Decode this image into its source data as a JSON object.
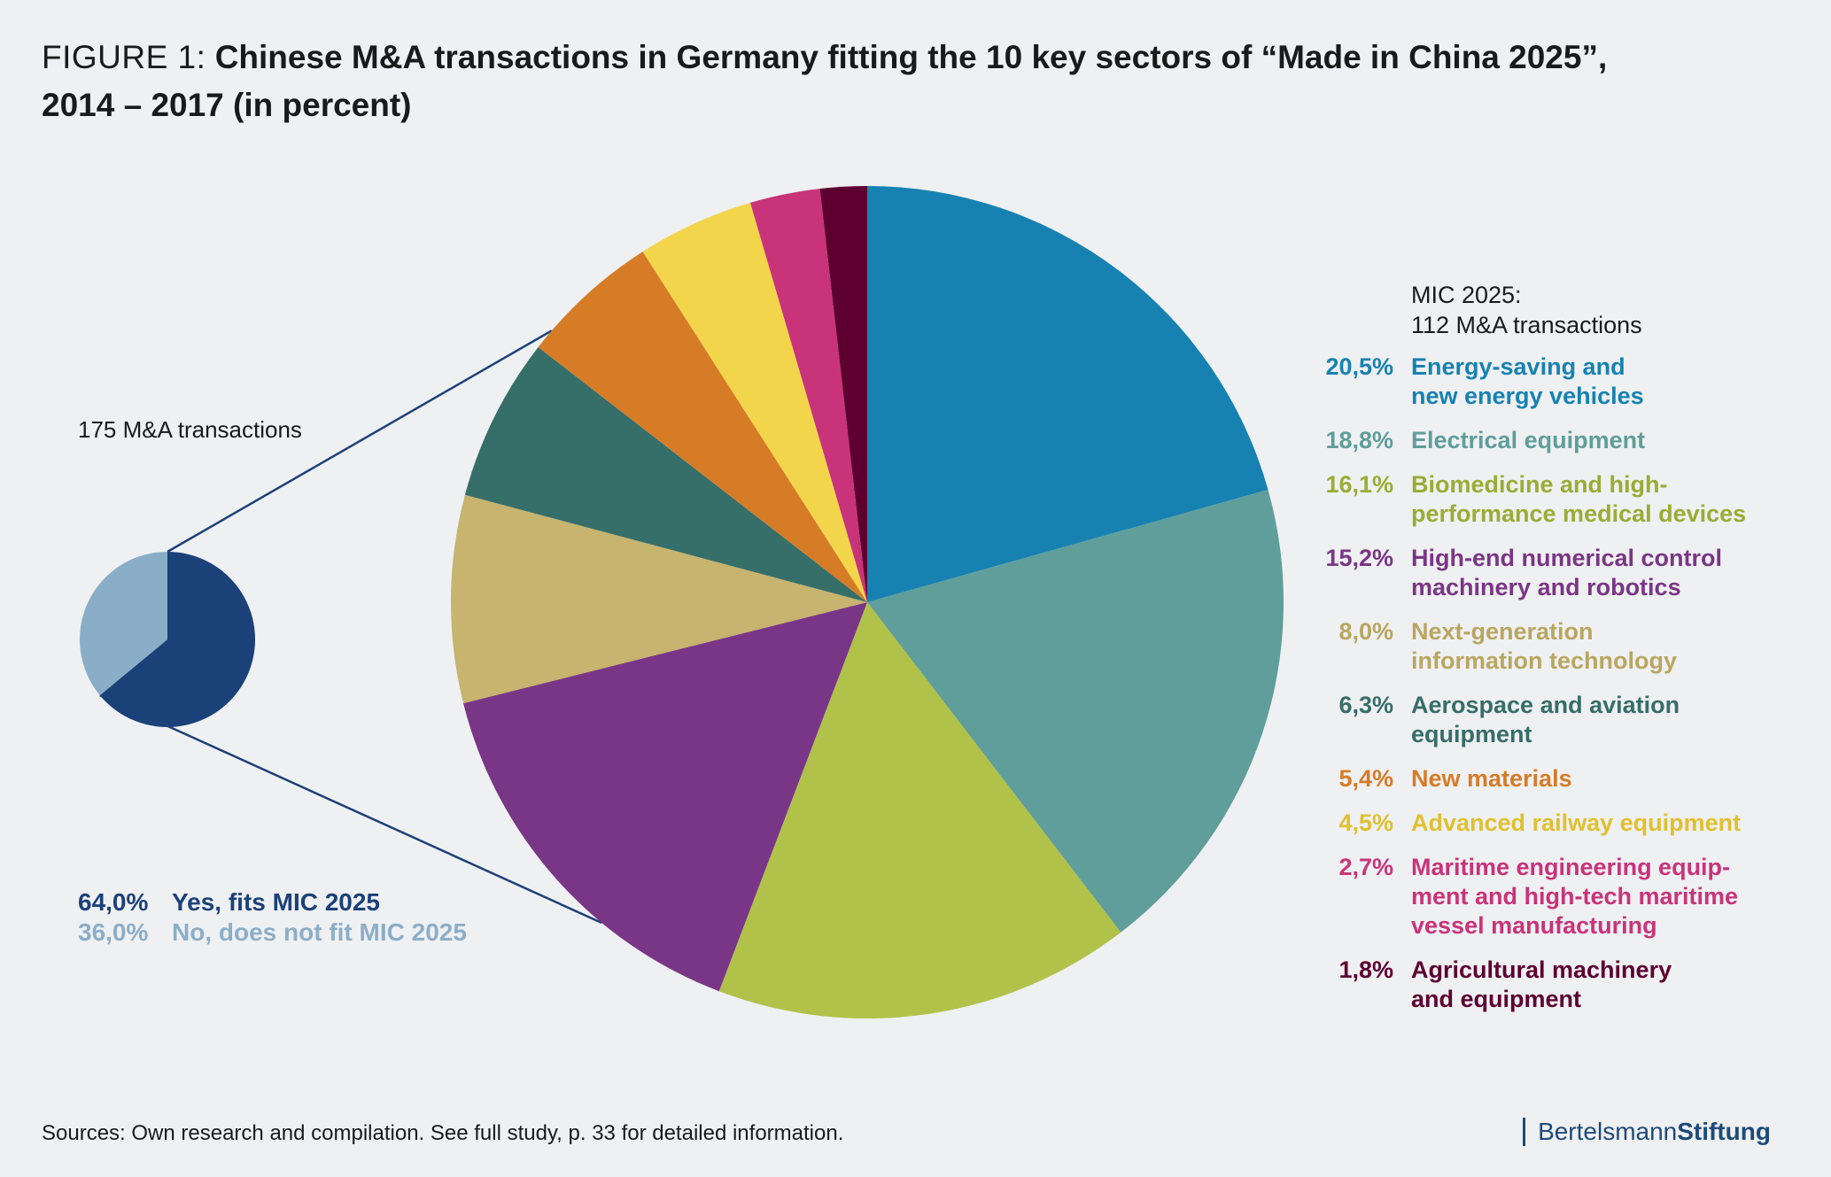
{
  "title": {
    "prefix": "FIGURE 1:",
    "line1": "Chinese M&A transactions in Germany fitting the 10 key sectors of “Made in China 2025”,",
    "line2": "2014 – 2017 (in percent)"
  },
  "small_pie": {
    "total_label": "175 M&A transactions",
    "legend": [
      {
        "value": "64,0%",
        "label": "Yes, fits MIC 2025",
        "color": "#1b4179"
      },
      {
        "value": "36,0%",
        "label": "No, does not fit MIC 2025",
        "color": "#8baec8"
      }
    ]
  },
  "mic_header": {
    "line1": "MIC 2025:",
    "line2": "112 M&A transactions"
  },
  "chart_data": [
    {
      "type": "pie",
      "categories": [
        "Yes, fits MIC 2025",
        "No, does not fit MIC 2025"
      ],
      "values": [
        64.0,
        36.0
      ],
      "colors": [
        "#1b4179",
        "#8baec8"
      ]
    },
    {
      "type": "pie",
      "categories": [
        "Energy-saving and new energy vehicles",
        "Electrical equipment",
        "Biomedicine and high-performance medical devices",
        "High-end numerical control machinery and robotics",
        "Next-generation information technology",
        "Aerospace and aviation equipment",
        "New materials",
        "Advanced railway equipment",
        "Maritime engineering equipment and high-tech maritime vessel manufacturing",
        "Agricultural machinery and equipment"
      ],
      "values": [
        20.5,
        18.8,
        16.1,
        15.2,
        8.0,
        6.3,
        5.4,
        4.5,
        2.7,
        1.8
      ],
      "colors": [
        "#1782b2",
        "#5f9e9a",
        "#b0c24a",
        "#7a3686",
        "#c6b46f",
        "#366e69",
        "#d67c27",
        "#f3d54b",
        "#c9337a",
        "#5d0031"
      ]
    }
  ],
  "legend": [
    {
      "value": "20,5%",
      "label": "Energy-saving and\nnew energy vehicles",
      "color": "#1782b2",
      "text_color": "#1782b2"
    },
    {
      "value": "18,8%",
      "label": "Electrical equipment",
      "color": "#5f9e9a",
      "text_color": "#5f9e9a"
    },
    {
      "value": "16,1%",
      "label": "Biomedicine and high-\nperformance medical devices",
      "color": "#b0c24a",
      "text_color": "#9aac35"
    },
    {
      "value": "15,2%",
      "label": "High-end numerical control\nmachinery and robotics",
      "color": "#7a3686",
      "text_color": "#7a3686"
    },
    {
      "value": "8,0%",
      "label": "Next-generation\ninformation technology",
      "color": "#c6b46f",
      "text_color": "#b9a660"
    },
    {
      "value": "6,3%",
      "label": "Aerospace and aviation\nequipment",
      "color": "#366e69",
      "text_color": "#366e69"
    },
    {
      "value": "5,4%",
      "label": "New materials",
      "color": "#d67c27",
      "text_color": "#d67c27"
    },
    {
      "value": "4,5%",
      "label": "Advanced railway equipment",
      "color": "#f3d54b",
      "text_color": "#e0c030"
    },
    {
      "value": "2,7%",
      "label": "Maritime engineering equip-\nment and high-tech maritime\nvessel manufacturing",
      "color": "#c9337a",
      "text_color": "#c9337a"
    },
    {
      "value": "1,8%",
      "label": "Agricultural machinery\nand equipment",
      "color": "#5d0031",
      "text_color": "#5d0031"
    }
  ],
  "footer": {
    "source": "Sources: Own research and compilation. See full study, p. 33 for detailed information."
  },
  "brand": {
    "part1": "Bertelsmann",
    "part2": "Stiftung"
  },
  "connector_color": "#1b4179"
}
